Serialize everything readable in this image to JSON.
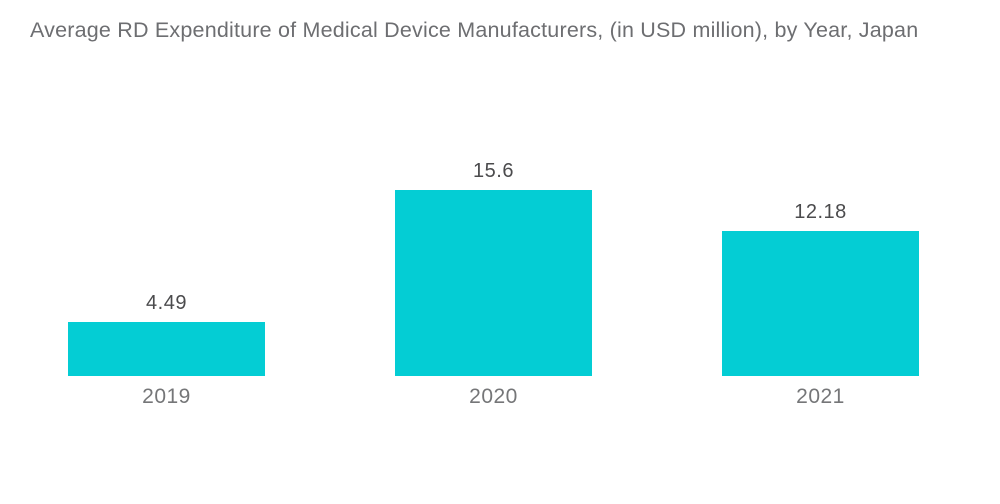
{
  "chart_data": {
    "type": "bar",
    "title": "Average RD Expenditure of Medical Device Manufacturers, (in USD million), by Year, Japan",
    "categories": [
      "2019",
      "2020",
      "2021"
    ],
    "values": [
      4.49,
      15.6,
      12.18
    ],
    "value_labels": [
      "4.49",
      "15.6",
      "12.18"
    ],
    "xlabel": "",
    "ylabel": "",
    "ylim": [
      0,
      15.6
    ],
    "grid": false,
    "legend": false,
    "bar_color": "#04cdd4"
  },
  "colors": {
    "background": "#ffffff",
    "title_text": "#6d6e71",
    "value_label_text": "#4b4b4d",
    "tick_label_text": "#757678",
    "bar_fill": "#04cdd4"
  }
}
